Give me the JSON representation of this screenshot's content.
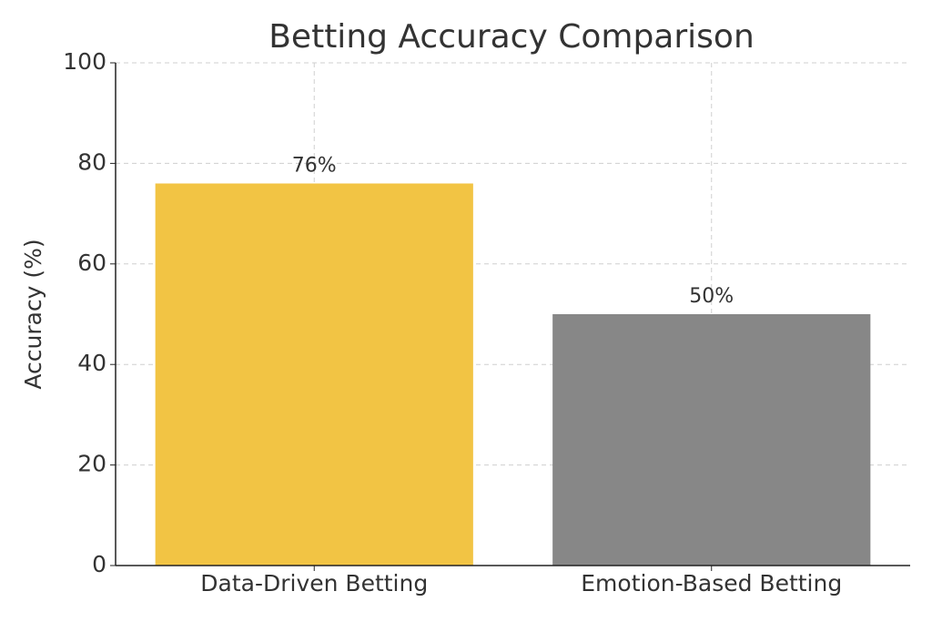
{
  "chart_data": {
    "type": "bar",
    "title": "Betting Accuracy Comparison",
    "y_label": "Accuracy (%)",
    "categories": [
      "Data-Driven Betting",
      "Emotion-Based Betting"
    ],
    "values": [
      76,
      50
    ],
    "value_labels": [
      "76%",
      "50%"
    ],
    "colors": [
      "#f2c444",
      "#878787"
    ],
    "ylim": [
      0,
      100
    ],
    "yticks": [
      0,
      20,
      40,
      60,
      80,
      100
    ],
    "grid": true
  }
}
